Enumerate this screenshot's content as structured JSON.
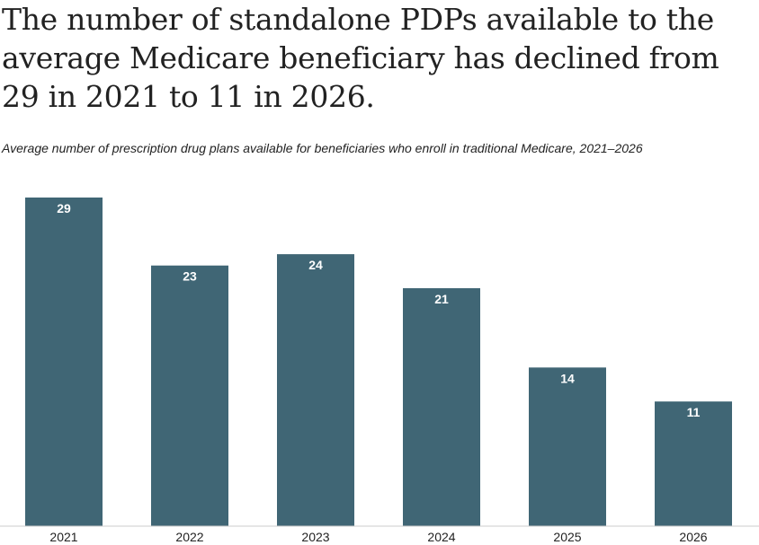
{
  "header": {
    "title": "The number of standalone PDPs available to the average Medicare beneficiary has declined from 29 in 2021 to 11 in 2026.",
    "subtitle": "Average number of prescription drug plans available for beneficiaries who enroll in traditional Medicare, 2021–2026"
  },
  "colors": {
    "bar": "#406675",
    "bar_label": "#ffffff",
    "axis": "#cccccc",
    "text": "#222222"
  },
  "chart_data": {
    "type": "bar",
    "title": "The number of standalone PDPs available to the average Medicare beneficiary has declined from 29 in 2021 to 11 in 2026.",
    "subtitle": "Average number of prescription drug plans available for beneficiaries who enroll in traditional Medicare, 2021–2026",
    "categories": [
      "2021",
      "2022",
      "2023",
      "2024",
      "2025",
      "2026"
    ],
    "values": [
      29,
      23,
      24,
      21,
      14,
      11
    ],
    "xlabel": "",
    "ylabel": "",
    "ylim": [
      0,
      29
    ],
    "grid": false,
    "data_labels": true
  }
}
